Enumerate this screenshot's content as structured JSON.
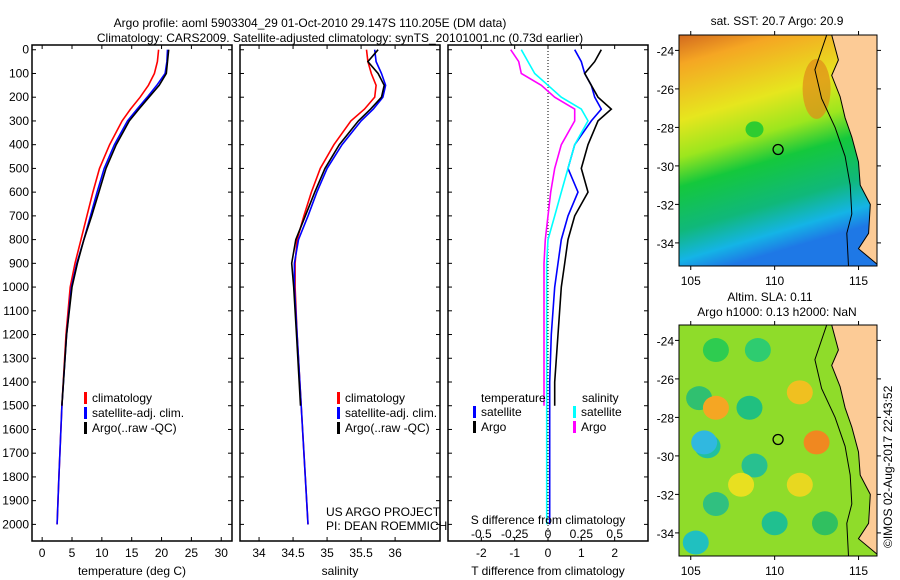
{
  "title": {
    "line1": "Argo profile: aoml 5903304_29 01-Oct-2010 29.147S 110.205E (DM data)",
    "line2": "Climatology: CARS2009. Satellite-adjusted climatology: synTS_20101001.nc (0.73d earlier)"
  },
  "colors": {
    "climatology": "#ff0000",
    "satellite": "#0000ff",
    "argo": "#000000",
    "sal_satellite": "#00ffff",
    "sal_argo": "#ff00ff",
    "land": "#fccb96"
  },
  "credit": "©IMOS 02-Aug-2017 22:43:52",
  "chart_data": [
    {
      "type": "line",
      "name": "temperature",
      "xlabel": "temperature (deg C)",
      "xlim": [
        -1.7,
        31.8
      ],
      "ylim": [
        2070,
        -20
      ],
      "xticks": [
        0,
        5,
        10,
        15,
        20,
        25,
        30
      ],
      "yticks": [
        0,
        100,
        200,
        300,
        400,
        500,
        600,
        700,
        800,
        900,
        1000,
        1100,
        1200,
        1300,
        1400,
        1500,
        1600,
        1700,
        1800,
        1900,
        2000
      ],
      "legend": [
        "climatology",
        "satellite-adj. clim.",
        "Argo(..raw -QC)"
      ],
      "depth": [
        0,
        50,
        100,
        150,
        200,
        250,
        300,
        400,
        500,
        600,
        700,
        800,
        900,
        1000,
        1200,
        1500,
        1800,
        2000
      ],
      "series": [
        {
          "name": "climatology",
          "color": "#ff0000",
          "values": [
            19.5,
            19.3,
            18.8,
            17.8,
            16.4,
            14.8,
            13.4,
            11.3,
            9.6,
            8.5,
            7.5,
            6.5,
            5.5,
            4.7,
            4.0,
            3.3,
            2.8,
            2.5
          ]
        },
        {
          "name": "satellite-adj. clim.",
          "color": "#0000ff",
          "values": [
            21.0,
            20.9,
            20.6,
            19.2,
            17.6,
            15.9,
            14.3,
            12.1,
            10.4,
            9.2,
            8.1,
            7.0,
            5.8,
            4.9,
            4.1,
            3.3,
            2.8,
            2.5
          ]
        },
        {
          "name": "Argo(..raw -QC)",
          "color": "#000000",
          "values": [
            21.2,
            21.0,
            20.8,
            19.6,
            17.9,
            16.2,
            14.6,
            12.4,
            10.7,
            9.5,
            8.3,
            7.0,
            5.9,
            5.0,
            4.1,
            3.3,
            null,
            null
          ]
        }
      ]
    },
    {
      "type": "line",
      "name": "salinity",
      "xlabel": "salinity",
      "xlim": [
        33.72,
        36.66
      ],
      "ylim": [
        2070,
        -20
      ],
      "xticks": [
        34,
        34.5,
        35,
        35.5,
        36
      ],
      "legend": [
        "climatology",
        "satellite-adj. clim.",
        "Argo(..raw -QC)"
      ],
      "annotation": [
        "US ARGO PROJECT",
        "PI: DEAN ROEMMICH"
      ],
      "depth": [
        0,
        50,
        100,
        150,
        200,
        250,
        300,
        400,
        500,
        600,
        700,
        800,
        900,
        1000,
        1200,
        1500,
        1800,
        2000
      ],
      "series": [
        {
          "name": "climatology",
          "color": "#ff0000",
          "values": [
            35.58,
            35.6,
            35.65,
            35.72,
            35.7,
            35.55,
            35.35,
            35.1,
            34.9,
            34.77,
            34.66,
            34.56,
            34.53,
            34.53,
            34.56,
            34.62,
            34.68,
            34.72
          ]
        },
        {
          "name": "satellite-adj. clim.",
          "color": "#0000ff",
          "values": [
            35.7,
            35.72,
            35.8,
            35.86,
            35.82,
            35.68,
            35.5,
            35.22,
            35.0,
            34.85,
            34.72,
            34.58,
            34.52,
            34.52,
            34.56,
            34.62,
            34.68,
            34.72
          ]
        },
        {
          "name": "Argo(..raw -QC)",
          "color": "#000000",
          "values": [
            35.75,
            35.6,
            35.75,
            35.84,
            35.8,
            35.64,
            35.46,
            35.18,
            34.97,
            34.82,
            34.68,
            34.54,
            34.48,
            34.51,
            34.55,
            34.61,
            null,
            null
          ]
        }
      ]
    },
    {
      "type": "line",
      "name": "differences",
      "xlabel": "T difference from climatology",
      "x2label": "S difference from climatology",
      "xlim": [
        -3,
        3
      ],
      "x2lim": [
        -0.75,
        0.75
      ],
      "ylim": [
        2070,
        -20
      ],
      "xticks": [
        -2,
        -1,
        0,
        1,
        2
      ],
      "x2ticks": [
        -0.5,
        -0.25,
        0,
        0.25,
        0.5
      ],
      "x2ticklabels": [
        "-0.5",
        "-0.25",
        "0",
        "0.25",
        "0.5"
      ],
      "legend_headers": [
        "temperature",
        "salinity"
      ],
      "legend": [
        "satellite",
        "Argo",
        "satellite",
        "Argo"
      ],
      "depth": [
        0,
        50,
        100,
        150,
        200,
        250,
        300,
        400,
        500,
        600,
        700,
        800,
        900,
        1000,
        1200,
        1400,
        1500,
        2000
      ],
      "series": [
        {
          "name": "T satellite",
          "axis": "T",
          "color": "#0000ff",
          "values": [
            0.8,
            1.0,
            1.1,
            1.3,
            1.4,
            1.6,
            1.3,
            0.8,
            0.6,
            0.9,
            0.6,
            0.4,
            0.3,
            0.2,
            0.1,
            0.05,
            0.05,
            0.05
          ]
        },
        {
          "name": "T Argo",
          "axis": "T",
          "color": "#000000",
          "values": [
            1.6,
            1.4,
            1.1,
            1.3,
            1.5,
            1.9,
            1.5,
            1.2,
            1.0,
            1.2,
            0.8,
            0.6,
            0.5,
            0.4,
            0.3,
            0.2,
            0.2,
            null
          ]
        },
        {
          "name": "S satellite",
          "axis": "S",
          "color": "#00ffff",
          "values": [
            -0.2,
            -0.15,
            -0.1,
            0.0,
            0.1,
            0.25,
            0.3,
            0.2,
            0.15,
            0.1,
            0.05,
            0.0,
            -0.01,
            -0.01,
            -0.01,
            -0.01,
            -0.01,
            -0.01
          ]
        },
        {
          "name": "S Argo",
          "axis": "S",
          "color": "#ff00ff",
          "values": [
            -0.28,
            -0.22,
            -0.2,
            -0.05,
            0.05,
            0.2,
            0.2,
            0.1,
            0.05,
            0.02,
            0.0,
            -0.02,
            -0.03,
            -0.03,
            -0.03,
            -0.03,
            -0.03,
            null
          ]
        }
      ]
    },
    {
      "type": "heatmap",
      "name": "sst-map",
      "title": "sat. SST: 20.7 Argo: 20.9",
      "xlim": [
        104.3,
        116.1
      ],
      "ylim": [
        -35.2,
        -23.2
      ],
      "xticks": [
        105,
        110,
        115
      ],
      "yticks": [
        -24,
        -26,
        -28,
        -30,
        -32,
        -34
      ],
      "argo_position": [
        110.205,
        -29.147
      ]
    },
    {
      "type": "heatmap",
      "name": "sla-map",
      "title": "Altim. SLA: 0.11",
      "subtitle": "Argo h1000: 0.13 h2000: NaN",
      "xlim": [
        104.3,
        116.1
      ],
      "ylim": [
        -35.2,
        -23.2
      ],
      "xticks": [
        105,
        110,
        115
      ],
      "yticks": [
        -24,
        -26,
        -28,
        -30,
        -32,
        -34
      ],
      "argo_position": [
        110.205,
        -29.147
      ]
    }
  ]
}
